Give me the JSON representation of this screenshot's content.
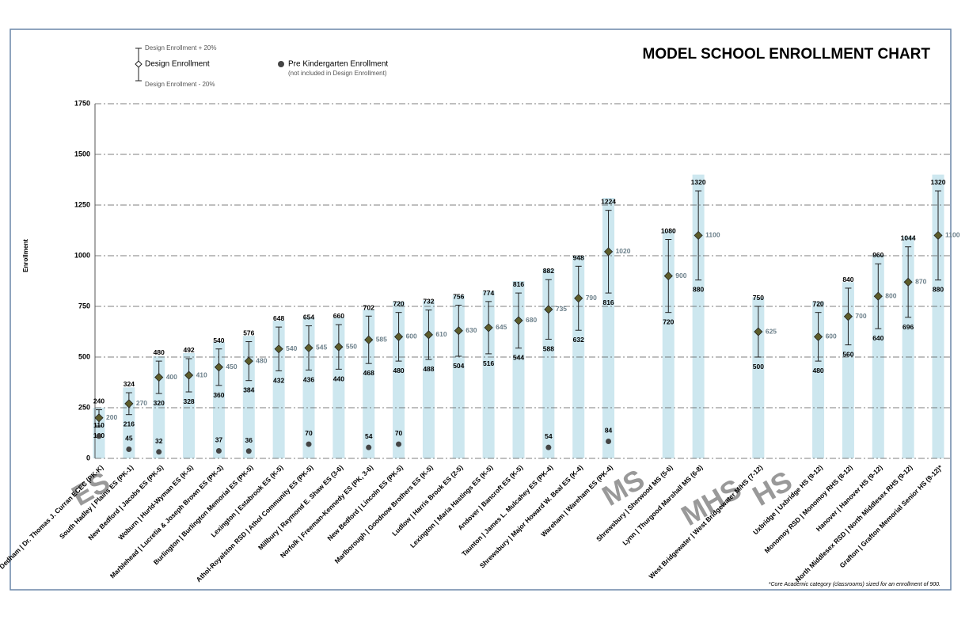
{
  "chart_data": {
    "type": "bar",
    "title": "MODEL SCHOOL ENROLLMENT CHART",
    "ylabel": "Enrollment",
    "ylim": [
      0,
      1750
    ],
    "yticks": [
      0,
      250,
      500,
      750,
      1000,
      1250,
      1500,
      1750
    ],
    "grid": true,
    "categories": [
      "Dedham | Dr. Thomas J. Curran ECEC (PK-K)",
      "South Hadley | Plains ES (PK-1)",
      "New Bedford | Jacobs ES (PK-5)",
      "Woburn | Hurld-Wyman ES (K-5)",
      "Marblehead | Lucretia & Joseph Brown ES (PK-3)",
      "Burlington | Burlington Memorial ES (PK-5)",
      "Lexington | Estabrook ES (K-5)",
      "Athol-Royalston RSD | Athol Community ES (PK-5)",
      "Millbury | Raymond E. Shaw ES (3-6)",
      "Norfolk | Freeman-Kennedy ES (PK, 3-6)",
      "New Bedford | Lincoln ES (PK-5)",
      "Marlborough | Goodnow Brothers ES (K-5)",
      "Ludlow | Harris Brook ES (2-5)",
      "Lexington | Maria Hastings ES (K-5)",
      "Andover | Bancroft ES (K-5)",
      "Taunton | James L. Mulcahey ES (PK-4)",
      "Shrewsbury | Major Howard W. Beal ES (K-4)",
      "Wareham | Wareham ES (PK-4)",
      null,
      "Shrewsbury | Sherwood MS (5-6)",
      "Lynn | Thurgood Marshall MS (6-8)",
      null,
      "West Bridgewater | West Bridgewater M/HS (7-12)",
      null,
      "Uxbridge | Uxbridge HS (9-12)",
      "Monomoy RSD | Monomoy RHS (8-12)",
      "Hanover | Hanover HS (9-12)",
      "North Middlesex RSD | North Middlesex RHS (9-12)",
      "Grafton | Grafton Memorial Senior HS (9-12)*"
    ],
    "bars": {
      "color": "#cde7ef",
      "values": [
        250,
        350,
        505,
        520,
        575,
        605,
        680,
        695,
        695,
        735,
        775,
        780,
        805,
        825,
        875,
        935,
        1000,
        1285,
        null,
        1125,
        1400,
        null,
        795,
        null,
        775,
        870,
        1005,
        1095,
        1400
      ]
    },
    "design": {
      "name": "Design Enrollment",
      "upper_name": "Design Enrollment + 20%",
      "lower_name": "Design Enrollment - 20%",
      "color": "#5c5c2a",
      "values": [
        200,
        270,
        400,
        410,
        450,
        480,
        540,
        545,
        550,
        585,
        600,
        610,
        630,
        645,
        680,
        735,
        790,
        1020,
        null,
        900,
        1100,
        null,
        625,
        null,
        600,
        700,
        800,
        870,
        1100
      ],
      "upper": [
        240,
        324,
        480,
        492,
        540,
        576,
        648,
        654,
        660,
        702,
        720,
        732,
        756,
        774,
        816,
        882,
        948,
        1224,
        null,
        1080,
        1320,
        null,
        750,
        null,
        720,
        840,
        960,
        1044,
        1320
      ],
      "lower": [
        160,
        216,
        320,
        328,
        360,
        384,
        432,
        436,
        440,
        468,
        480,
        488,
        504,
        516,
        544,
        588,
        632,
        816,
        null,
        720,
        880,
        null,
        500,
        null,
        480,
        560,
        640,
        696,
        880
      ]
    },
    "prek": {
      "name": "Pre Kindergarten Enrollment",
      "note": "(not included in Design Enrollment)",
      "color": "#444444",
      "values": [
        110,
        45,
        32,
        null,
        37,
        36,
        null,
        70,
        null,
        54,
        70,
        null,
        null,
        null,
        null,
        54,
        null,
        84,
        null,
        null,
        null,
        null,
        null,
        null,
        null,
        null,
        null,
        null,
        null
      ]
    },
    "groups": [
      "ES",
      "MS",
      "MHS",
      "HS"
    ],
    "footnote": "*Core Academic category (classrooms) sized for an enrollment of 900."
  }
}
